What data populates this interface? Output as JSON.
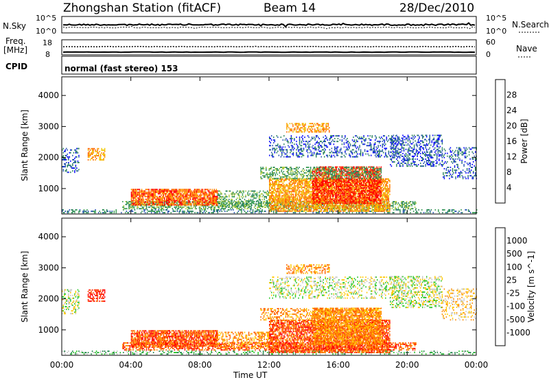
{
  "header": {
    "title": "Zhongshan Station (fitACF)",
    "beam": "Beam 14",
    "date": "28/Dec/2010"
  },
  "strips": {
    "nsky": {
      "label": "N.Sky",
      "ticks": [
        "10^5",
        "10^0"
      ]
    },
    "nsearch": {
      "label": "N.Search",
      "ticks": [
        "10^5",
        "10^0"
      ]
    },
    "freq": {
      "label_line1": "Freq.",
      "label_line2": "[MHz]",
      "ticks": [
        "18",
        "8"
      ]
    },
    "nave": {
      "label": "Nave",
      "ticks": [
        "60",
        "0"
      ]
    },
    "cpid": {
      "label": "CPID",
      "value": "normal (fast stereo) 153"
    }
  },
  "chart_data": [
    {
      "type": "heatmap",
      "name": "power-panel",
      "ylabel": "Slant Range [km]",
      "xlabel": "",
      "x_ticks": [
        "00:00",
        "04:00",
        "08:00",
        "12:00",
        "16:00",
        "20:00",
        "00:00"
      ],
      "xlim_hours": [
        0,
        24
      ],
      "y_ticks": [
        1000,
        2000,
        3000,
        4000
      ],
      "ylim_km": [
        180,
        4600
      ],
      "colorbar": {
        "label": "Power [dB]",
        "ticks": [
          "28",
          "24",
          "20",
          "16",
          "12",
          "8",
          "4"
        ],
        "colors": [
          "#0000ff",
          "#2a57b2",
          "#28825a",
          "#3ea05a",
          "#aac83c",
          "#f0c800",
          "#ff9a00",
          "#ff6400",
          "#ff0000"
        ]
      },
      "regions": [
        {
          "t": [
            0.0,
            24.0
          ],
          "r": [
            200,
            330
          ],
          "level": 2,
          "density": 0.35
        },
        {
          "t": [
            3.5,
            20.5
          ],
          "r": [
            330,
            600
          ],
          "level": 3,
          "density": 0.55
        },
        {
          "t": [
            4.0,
            9.0
          ],
          "r": [
            450,
            950
          ],
          "level": 7,
          "density": 0.8
        },
        {
          "t": [
            9.0,
            12.0
          ],
          "r": [
            400,
            900
          ],
          "level": 3,
          "density": 0.45
        },
        {
          "t": [
            12.0,
            19.0
          ],
          "r": [
            250,
            1300
          ],
          "level": 6,
          "density": 0.75
        },
        {
          "t": [
            14.5,
            18.5
          ],
          "r": [
            500,
            1700
          ],
          "level": 8,
          "density": 0.7
        },
        {
          "t": [
            11.5,
            18.5
          ],
          "r": [
            1300,
            1700
          ],
          "level": 3,
          "density": 0.45
        },
        {
          "t": [
            0.0,
            1.0
          ],
          "r": [
            1500,
            2300
          ],
          "level": 1,
          "density": 0.4
        },
        {
          "t": [
            1.5,
            2.5
          ],
          "r": [
            1900,
            2300
          ],
          "level": 6,
          "density": 0.55
        },
        {
          "t": [
            12.0,
            19.5
          ],
          "r": [
            2000,
            2700
          ],
          "level": 1,
          "density": 0.3
        },
        {
          "t": [
            13.0,
            15.5
          ],
          "r": [
            2800,
            3100
          ],
          "level": 6,
          "density": 0.5
        },
        {
          "t": [
            19.0,
            22.0
          ],
          "r": [
            1700,
            2700
          ],
          "level": 1,
          "density": 0.4
        },
        {
          "t": [
            22.0,
            24.0
          ],
          "r": [
            1300,
            2300
          ],
          "level": 1,
          "density": 0.3
        }
      ]
    },
    {
      "type": "heatmap",
      "name": "velocity-panel",
      "ylabel": "Slant Range [km]",
      "xlabel": "Time UT",
      "x_ticks": [
        "00:00",
        "04:00",
        "08:00",
        "12:00",
        "16:00",
        "20:00",
        "00:00"
      ],
      "xlim_hours": [
        0,
        24
      ],
      "y_ticks": [
        1000,
        2000,
        3000,
        4000
      ],
      "ylim_km": [
        180,
        4600
      ],
      "colorbar": {
        "label": "Velocity [m s^-1]",
        "ticks": [
          "1000",
          "500",
          "100",
          "25",
          "-25",
          "-100",
          "-500",
          "-1000"
        ],
        "colors": [
          "#ff0000",
          "#ff5a00",
          "#ff8c00",
          "#ffc800",
          "#c8c8c8",
          "#28c828",
          "#288c50",
          "#2850b4",
          "#1432dc"
        ]
      },
      "regions": [
        {
          "t": [
            0.0,
            24.0
          ],
          "r": [
            200,
            330
          ],
          "level": 5,
          "density": 0.3
        },
        {
          "t": [
            3.5,
            20.5
          ],
          "r": [
            330,
            600
          ],
          "level": 1,
          "density": 0.55
        },
        {
          "t": [
            4.0,
            9.0
          ],
          "r": [
            450,
            950
          ],
          "level": 1,
          "density": 0.8
        },
        {
          "t": [
            9.0,
            12.0
          ],
          "r": [
            400,
            900
          ],
          "level": 2,
          "density": 0.45
        },
        {
          "t": [
            12.0,
            19.0
          ],
          "r": [
            250,
            1300
          ],
          "level": 1,
          "density": 0.75
        },
        {
          "t": [
            14.5,
            18.5
          ],
          "r": [
            500,
            1700
          ],
          "level": 2,
          "density": 0.7
        },
        {
          "t": [
            11.5,
            18.5
          ],
          "r": [
            1300,
            1700
          ],
          "level": 2,
          "density": 0.45
        },
        {
          "t": [
            0.0,
            1.0
          ],
          "r": [
            1500,
            2300
          ],
          "level": 4,
          "density": 0.4
        },
        {
          "t": [
            1.5,
            2.5
          ],
          "r": [
            1900,
            2300
          ],
          "level": 0,
          "density": 0.55
        },
        {
          "t": [
            12.0,
            19.5
          ],
          "r": [
            2000,
            2700
          ],
          "level": 4,
          "density": 0.3
        },
        {
          "t": [
            13.0,
            15.5
          ],
          "r": [
            2800,
            3100
          ],
          "level": 2,
          "density": 0.5
        },
        {
          "t": [
            19.0,
            22.0
          ],
          "r": [
            1700,
            2700
          ],
          "level": 4,
          "density": 0.4
        },
        {
          "t": [
            22.0,
            24.0
          ],
          "r": [
            1300,
            2300
          ],
          "level": 3,
          "density": 0.3
        }
      ]
    }
  ]
}
